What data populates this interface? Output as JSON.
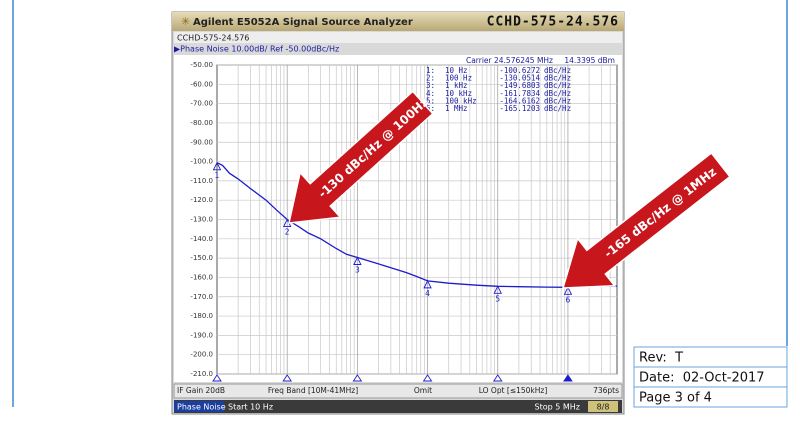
{
  "header": {
    "instrument": "Agilent E5052A Signal Source Analyzer",
    "part": "CCHD-575-24.576",
    "subpart": "CCHD-575-24.576",
    "mode_line": "▶Phase Noise 10.00dB/ Ref -50.00dBc/Hz"
  },
  "chart_data": {
    "type": "line",
    "xscale": "log",
    "xlim": [
      10,
      5000000
    ],
    "ylim": [
      -210,
      -50
    ],
    "yticks": [
      {
        "value": -50,
        "label": "-50.00"
      },
      {
        "value": -60,
        "label": "-60.00"
      },
      {
        "value": -70,
        "label": "-70.00"
      },
      {
        "value": -80,
        "label": "-80.00"
      },
      {
        "value": -90,
        "label": "-90.00"
      },
      {
        "value": -100,
        "label": "-100.0"
      },
      {
        "value": -110,
        "label": "-110.0"
      },
      {
        "value": -120,
        "label": "-120.0"
      },
      {
        "value": -130,
        "label": "-130.0"
      },
      {
        "value": -140,
        "label": "-140.0"
      },
      {
        "value": -150,
        "label": "-150.0"
      },
      {
        "value": -160,
        "label": "-160.0"
      },
      {
        "value": -170,
        "label": "-170.0"
      },
      {
        "value": -180,
        "label": "-180.0"
      },
      {
        "value": -190,
        "label": "-190.0"
      },
      {
        "value": -200,
        "label": "-200.0"
      },
      {
        "value": -210,
        "label": "-210.0"
      }
    ],
    "grid": true,
    "series": [
      {
        "color": "#1c1ccc",
        "x": [
          10,
          12,
          15,
          20,
          30,
          50,
          70,
          100,
          150,
          200,
          300,
          500,
          700,
          1000,
          2000,
          3000,
          5000,
          7000,
          10000,
          20000,
          50000,
          100000,
          200000,
          500000,
          1000000,
          2000000,
          5000000
        ],
        "values": [
          -100.6,
          -102,
          -106,
          -109,
          -114,
          -120,
          -125,
          -130,
          -134,
          -137,
          -140,
          -145,
          -148,
          -149.7,
          -153,
          -155,
          -157.5,
          -159.5,
          -161.8,
          -163,
          -164,
          -164.6,
          -164.8,
          -165,
          -165.1,
          -164.6,
          -164.5
        ]
      }
    ],
    "carrier": "Carrier 24.576245 MHz",
    "carrier_power": "14.3395 dBm",
    "marker_unit": "dBc/Hz",
    "markers": [
      {
        "label": "1",
        "table_label": "1:",
        "x": 10,
        "x_label": "10 Hz",
        "value": -100.6272
      },
      {
        "label": "2",
        "table_label": "2:",
        "x": 100,
        "x_label": "100 Hz",
        "value": -130.0514
      },
      {
        "label": "3",
        "table_label": "3:",
        "x": 1000,
        "x_label": "1 kHz",
        "value": -149.6803
      },
      {
        "label": "4",
        "table_label": "4:",
        "x": 10000,
        "x_label": "10 kHz",
        "value": -161.7834
      },
      {
        "label": "5",
        "table_label": "5:",
        "x": 100000,
        "x_label": "100 kHz",
        "value": -164.6162
      },
      {
        "label": "6",
        "table_label": "6:",
        "x": 1000000,
        "x_label": "1 MHz",
        "value": -165.1203
      }
    ],
    "annotations": [
      "-130 dBc/Hz @ 100Hz",
      "-165 dBc/Hz @ 1MHz"
    ]
  },
  "status_bar": [
    "IF Gain 20dB",
    "Freq Band [10M-41MHz]",
    "Omit",
    "LO Opt [≤150kHz]",
    "736pts"
  ],
  "footer_bar": {
    "mode": "Phase Noise",
    "start": "Start 10 Hz",
    "stop": "Stop 5 MHz",
    "page": "8/8"
  },
  "doc_box": {
    "rev": "Rev:  T",
    "date": "Date:  02-Oct-2017",
    "page": "Page 3 of 4"
  }
}
